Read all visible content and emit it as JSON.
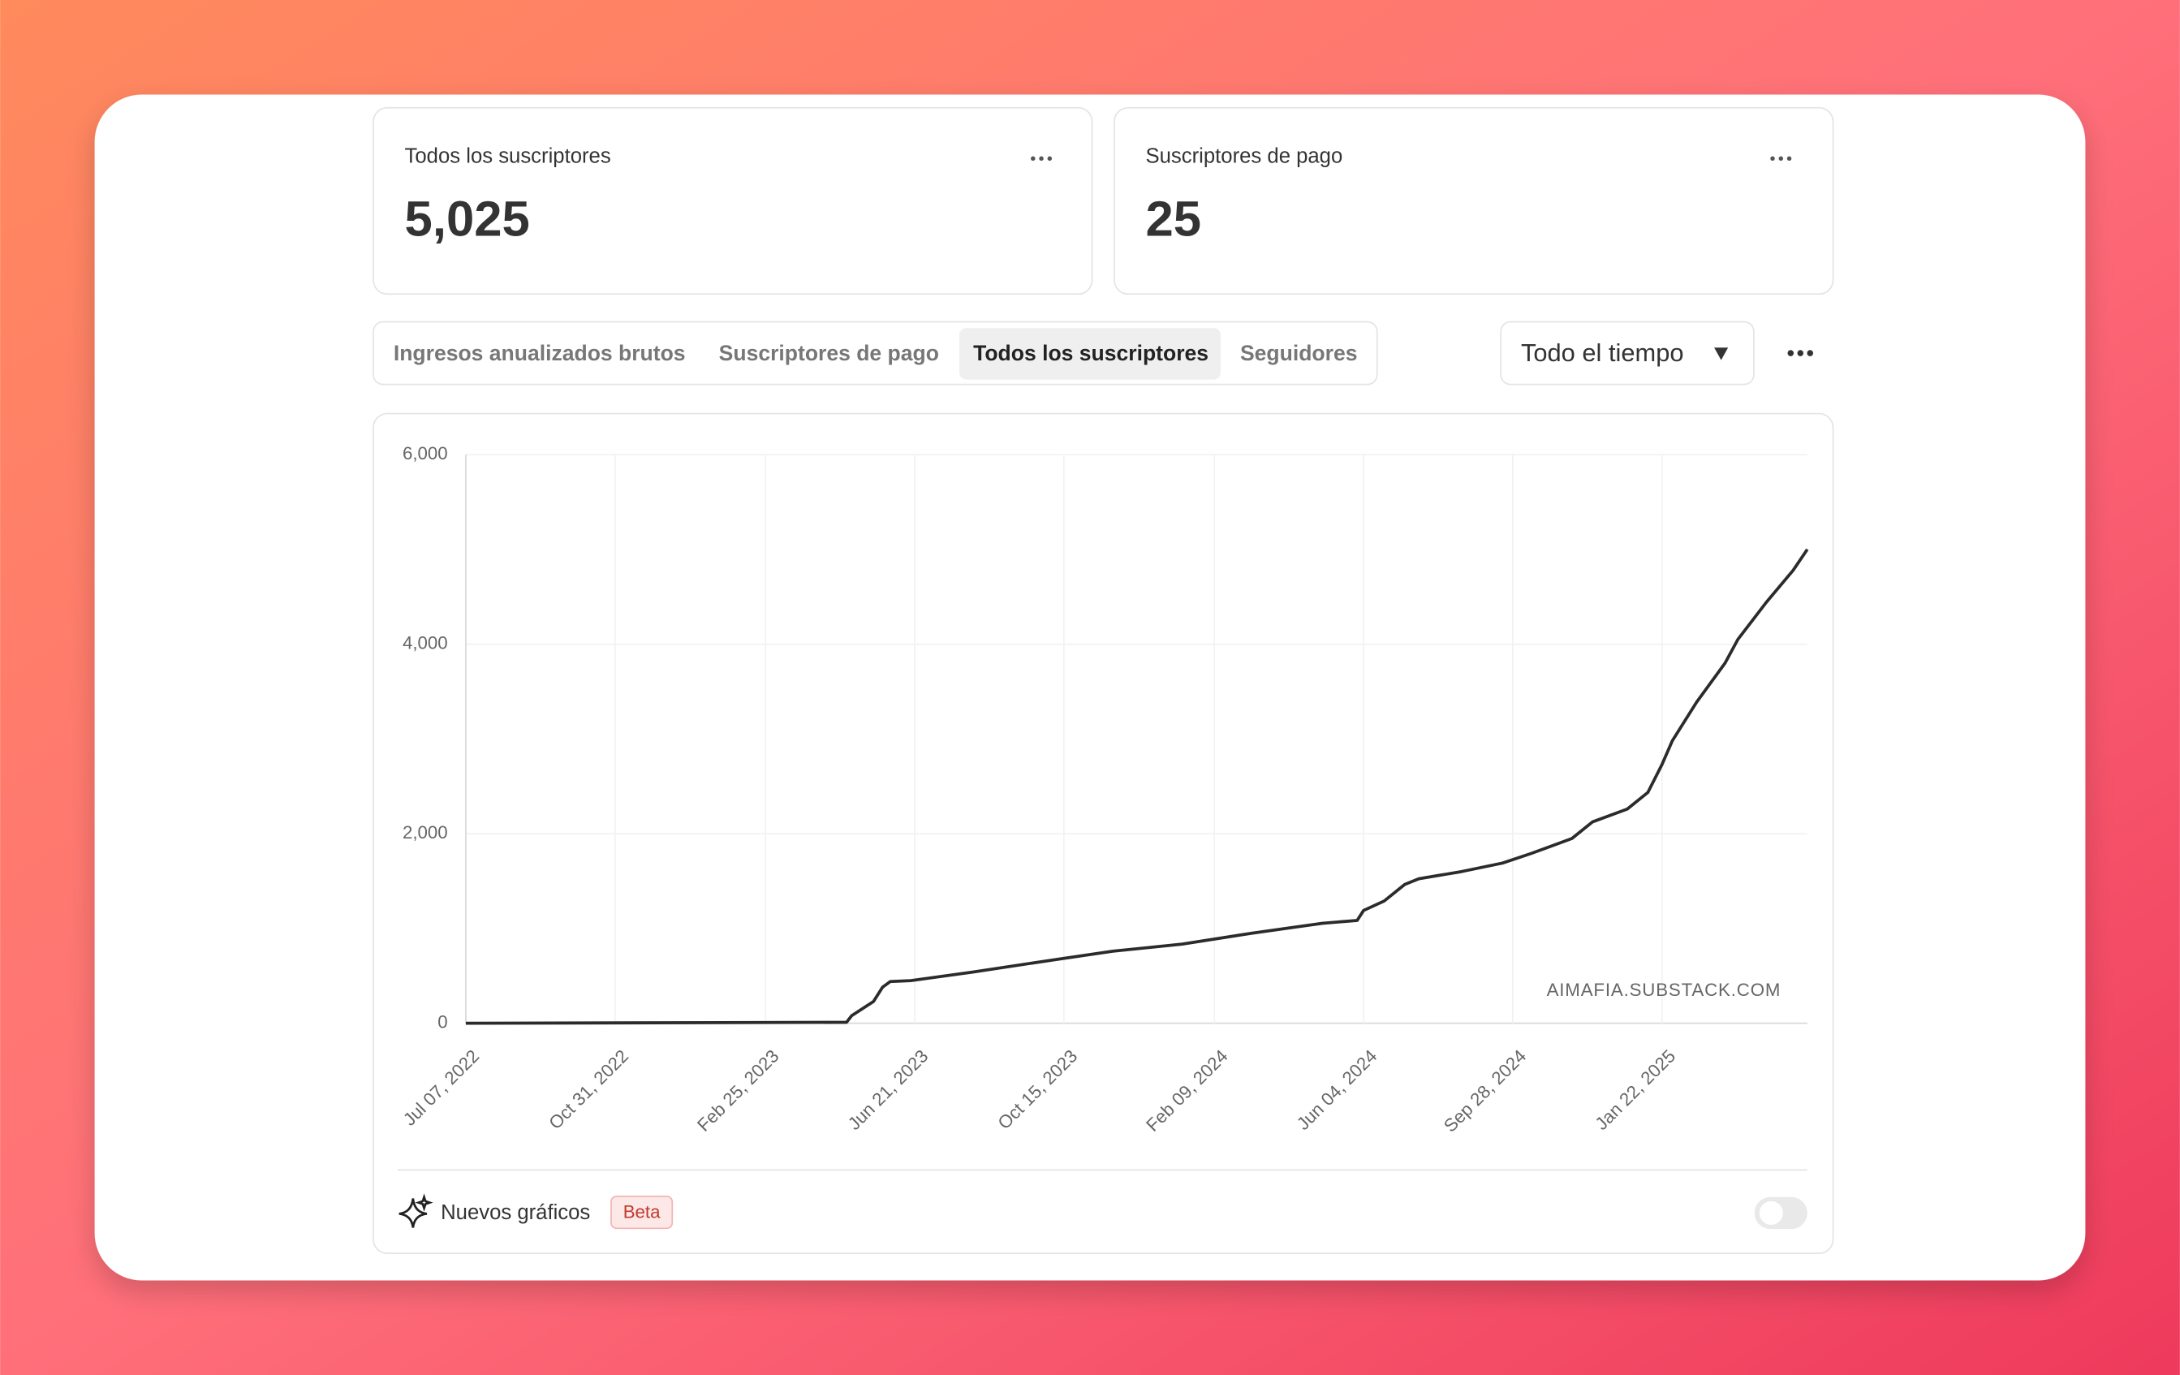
{
  "cards": [
    {
      "title": "Todos los suscriptores",
      "value": "5,025"
    },
    {
      "title": "Suscriptores de pago",
      "value": "25"
    }
  ],
  "tabs": [
    "Ingresos anualizados brutos",
    "Suscriptores de pago",
    "Todos los suscriptores",
    "Seguidores"
  ],
  "dropdown": "Todo el tiempo",
  "chart_data": {
    "type": "line",
    "annotation": "AIMAFIA.SUBSTACK.COM",
    "x": [
      "2022-07-07",
      "2023-04-29",
      "2023-05-03",
      "2023-05-20",
      "2023-05-27",
      "2023-06-02",
      "2023-06-18",
      "2023-08-05",
      "2023-10-10",
      "2023-11-22",
      "2024-01-15",
      "2024-03-09",
      "2024-05-03",
      "2024-05-30",
      "2024-06-04",
      "2024-06-20",
      "2024-07-06",
      "2024-07-17",
      "2024-08-19",
      "2024-09-20",
      "2024-10-12",
      "2024-11-13",
      "2024-11-29",
      "2024-12-26",
      "2025-01-11",
      "2025-01-22",
      "2025-01-30",
      "2025-02-18",
      "2025-03-12",
      "2025-03-22",
      "2025-04-13",
      "2025-05-04",
      "2025-05-15"
    ],
    "series": [
      {
        "name": "Todos los suscriptores",
        "color": "#2b2b2b",
        "values": [
          0,
          10,
          80,
          230,
          380,
          440,
          450,
          540,
          675,
          760,
          835,
          950,
          1055,
          1085,
          1190,
          1290,
          1465,
          1525,
          1600,
          1690,
          1790,
          1950,
          2125,
          2260,
          2435,
          2730,
          2980,
          3390,
          3800,
          4050,
          4440,
          4780,
          5000
        ]
      }
    ],
    "xlim": [
      "2022-07-07",
      "2025-05-15"
    ],
    "xticks": [
      {
        "value": "2022-07-07",
        "label": "Jul 07, 2022"
      },
      {
        "value": "2022-10-31",
        "label": "Oct 31, 2022"
      },
      {
        "value": "2023-02-25",
        "label": "Feb 25, 2023"
      },
      {
        "value": "2023-06-21",
        "label": "Jun 21, 2023"
      },
      {
        "value": "2023-10-15",
        "label": "Oct 15, 2023"
      },
      {
        "value": "2024-02-09",
        "label": "Feb 09, 2024"
      },
      {
        "value": "2024-06-04",
        "label": "Jun 04, 2024"
      },
      {
        "value": "2024-09-28",
        "label": "Sep 28, 2024"
      },
      {
        "value": "2025-01-22",
        "label": "Jan 22, 2025"
      }
    ],
    "ylim": [
      0,
      6000
    ],
    "yticks": [
      0,
      {
        "value": 2000,
        "label": "2,000"
      },
      {
        "value": 4000,
        "label": "4,000"
      },
      {
        "value": 6000,
        "label": "6,000"
      }
    ],
    "grid": true
  },
  "footer": {
    "label": "Nuevos gráficos",
    "badge": "Beta"
  }
}
